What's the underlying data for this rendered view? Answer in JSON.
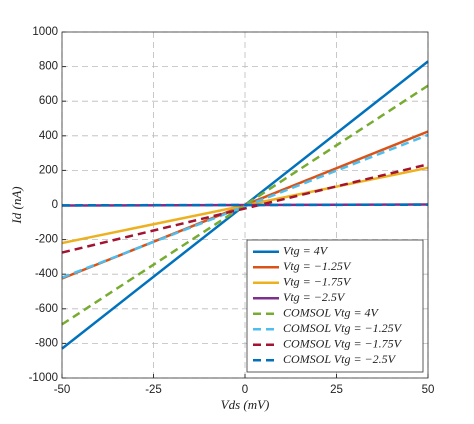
{
  "chart_data": {
    "type": "line",
    "x_label": "Vds (mV)",
    "y_label": "Id (nA)",
    "x": [
      -50,
      50
    ],
    "series": [
      {
        "name": "Vtg = 4V",
        "color": "#0072bd",
        "style": "solid",
        "values": [
          -830,
          830
        ]
      },
      {
        "name": "Vtg = −1.25V",
        "color": "#d95319",
        "style": "solid",
        "values": [
          -425,
          425
        ]
      },
      {
        "name": "Vtg = −1.75V",
        "color": "#edb120",
        "style": "solid",
        "values": [
          -220,
          215
        ]
      },
      {
        "name": "Vtg = −2.5V",
        "color": "#7e2f8e",
        "style": "solid",
        "values": [
          -3,
          3
        ]
      },
      {
        "name": "COMSOL Vtg = 4V",
        "color": "#77ac30",
        "style": "dashed",
        "values": [
          -690,
          690
        ]
      },
      {
        "name": "COMSOL Vtg = −1.25V",
        "color": "#4dbeee",
        "style": "dashed",
        "values": [
          -420,
          405
        ]
      },
      {
        "name": "COMSOL Vtg = −1.75V",
        "color": "#a2142f",
        "style": "dashed",
        "values": [
          -275,
          235
        ]
      },
      {
        "name": "COMSOL Vtg = −2.5V",
        "color": "#0072bd",
        "style": "dashed",
        "values": [
          -2,
          2
        ]
      }
    ],
    "xlim": [
      -50,
      50
    ],
    "xticks": [
      -50,
      -25,
      0,
      25,
      50
    ],
    "ylim": [
      -1000,
      1000
    ],
    "yticks": [
      -1000,
      -800,
      -600,
      -400,
      -200,
      0,
      200,
      400,
      600,
      800,
      1000
    ],
    "grid": true,
    "legend": "lower right"
  }
}
